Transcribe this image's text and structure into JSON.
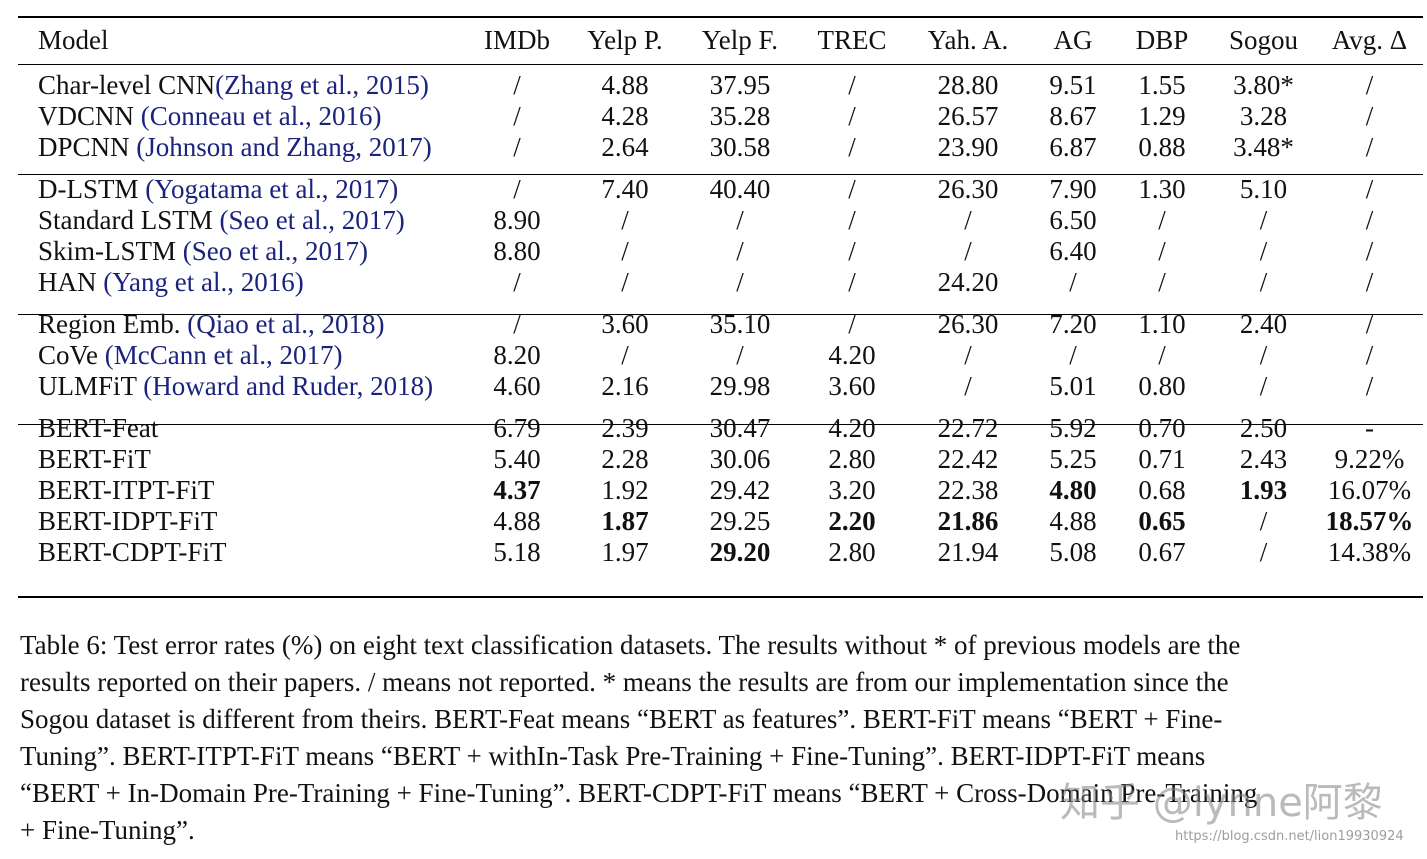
{
  "table": {
    "columns": [
      "Model",
      "IMDb",
      "Yelp P.",
      "Yelp F.",
      "TREC",
      "Yah. A.",
      "AG",
      "DBP",
      "Sogou",
      "Avg. Δ"
    ],
    "groups": [
      [
        {
          "model": "Char-level CNN",
          "cite": "(Zhang et al., 2015)",
          "cells": [
            "/",
            "4.88",
            "37.95",
            "/",
            "28.80",
            "9.51",
            "1.55",
            "3.80*",
            "/"
          ],
          "bold": []
        },
        {
          "model": "VDCNN ",
          "cite": "(Conneau et al., 2016)",
          "cells": [
            "/",
            "4.28",
            "35.28",
            "/",
            "26.57",
            "8.67",
            "1.29",
            "3.28",
            "/"
          ],
          "bold": []
        },
        {
          "model": "DPCNN ",
          "cite": "(Johnson and Zhang, 2017)",
          "cells": [
            "/",
            "2.64",
            "30.58",
            "/",
            "23.90",
            "6.87",
            "0.88",
            "3.48*",
            "/"
          ],
          "bold": []
        }
      ],
      [
        {
          "model": "D-LSTM ",
          "cite": "(Yogatama et al., 2017)",
          "cells": [
            "/",
            "7.40",
            "40.40",
            "/",
            "26.30",
            "7.90",
            "1.30",
            "5.10",
            "/"
          ],
          "bold": []
        },
        {
          "model": "Standard LSTM ",
          "cite": "(Seo et al., 2017)",
          "cells": [
            "8.90",
            "/",
            "/",
            "/",
            "/",
            "6.50",
            "/",
            "/",
            "/"
          ],
          "bold": []
        },
        {
          "model": "Skim-LSTM ",
          "cite": "(Seo et al., 2017)",
          "cells": [
            "8.80",
            "/",
            "/",
            "/",
            "/",
            "6.40",
            "/",
            "/",
            "/"
          ],
          "bold": []
        },
        {
          "model": "HAN ",
          "cite": "(Yang et al., 2016)",
          "cells": [
            "/",
            "/",
            "/",
            "/",
            "24.20",
            "/",
            "/",
            "/",
            "/"
          ],
          "bold": []
        }
      ],
      [
        {
          "model": "Region Emb. ",
          "cite": "(Qiao et al., 2018)",
          "cells": [
            "/",
            "3.60",
            "35.10",
            "/",
            "26.30",
            "7.20",
            "1.10",
            "2.40",
            "/"
          ],
          "bold": []
        },
        {
          "model": "CoVe ",
          "cite": "(McCann et al., 2017)",
          "cells": [
            "8.20",
            "/",
            "/",
            "4.20",
            "/",
            "/",
            "/",
            "/",
            "/"
          ],
          "bold": []
        },
        {
          "model": "ULMFiT ",
          "cite": "(Howard and Ruder, 2018)",
          "cells": [
            "4.60",
            "2.16",
            "29.98",
            "3.60",
            "/",
            "5.01",
            "0.80",
            "/",
            "/"
          ],
          "bold": []
        }
      ],
      [
        {
          "model": "BERT-Feat",
          "cite": "",
          "cells": [
            "6.79",
            "2.39",
            "30.47",
            "4.20",
            "22.72",
            "5.92",
            "0.70",
            "2.50",
            "-"
          ],
          "bold": []
        },
        {
          "model": "BERT-FiT",
          "cite": "",
          "cells": [
            "5.40",
            "2.28",
            "30.06",
            "2.80",
            "22.42",
            "5.25",
            "0.71",
            "2.43",
            "9.22%"
          ],
          "bold": []
        },
        {
          "model": "BERT-ITPT-FiT",
          "cite": "",
          "cells": [
            "4.37",
            "1.92",
            "29.42",
            "3.20",
            "22.38",
            "4.80",
            "0.68",
            "1.93",
            "16.07%"
          ],
          "bold": [
            0,
            5,
            7
          ]
        },
        {
          "model": "BERT-IDPT-FiT",
          "cite": "",
          "cells": [
            "4.88",
            "1.87",
            "29.25",
            "2.20",
            "21.86",
            "4.88",
            "0.65",
            "/",
            "18.57%"
          ],
          "bold": [
            1,
            3,
            4,
            6,
            8
          ]
        },
        {
          "model": "BERT-CDPT-FiT",
          "cite": "",
          "cells": [
            "5.18",
            "1.97",
            "29.20",
            "2.80",
            "21.94",
            "5.08",
            "0.67",
            "/",
            "14.38%"
          ],
          "bold": [
            2
          ]
        }
      ]
    ]
  },
  "caption": {
    "lines": [
      "Table 6:  Test error rates (%) on eight text classification datasets. The results without * of previous models are the",
      "results reported on their papers. / means not reported. * means the results are from our implementation since the",
      "Sogou dataset is different from theirs. BERT-Feat means “BERT as features”. BERT-FiT means “BERT + Fine-",
      "Tuning”.  BERT-ITPT-FiT means “BERT + withIn-Task Pre-Training + Fine-Tuning”.  BERT-IDPT-FiT means",
      "“BERT + In-Domain Pre-Training + Fine-Tuning”. BERT-CDPT-FiT means “BERT + Cross-Domain Pre-Training",
      "+ Fine-Tuning”."
    ]
  },
  "watermark": {
    "text": "知乎 @lynne阿黎",
    "url": "https://blog.csdn.net/lion19930924"
  }
}
